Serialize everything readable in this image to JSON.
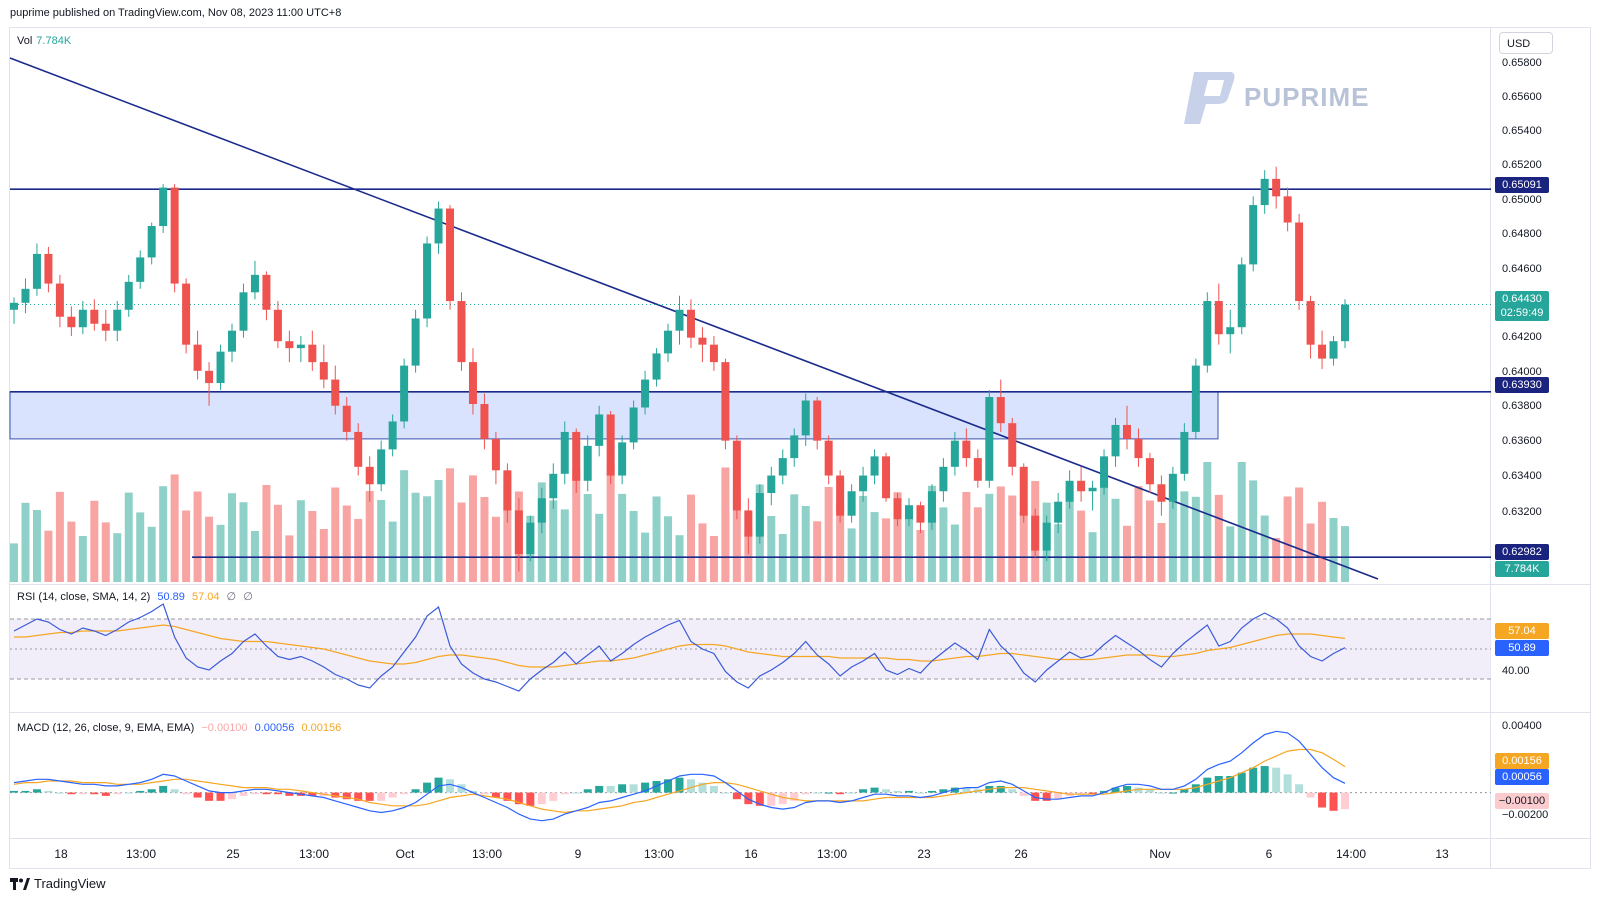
{
  "header": {
    "published": "puprime published on TradingView.com, Nov 08, 2023 11:00 UTC+8"
  },
  "watermark": {
    "text": "PUPRIME"
  },
  "currency_button": "USD",
  "footer": {
    "brand": "TradingView"
  },
  "panes": {
    "volume": {
      "name": "Vol",
      "value": "7.784K"
    },
    "rsi": {
      "name": "RSI",
      "params": "(14, close, SMA, 14, 2)",
      "value": "50.89",
      "sma": "57.04",
      "extra1": "∅",
      "extra2": "∅"
    },
    "macd": {
      "name": "MACD",
      "params": "(12, 26, close, 9, EMA, EMA)",
      "hist": "−0.00100",
      "macd": "0.00056",
      "signal": "0.00156"
    }
  },
  "price_axis": {
    "ticks": [
      "0.65800",
      "0.65600",
      "0.65400",
      "0.65200",
      "0.65000",
      "0.64800",
      "0.64600",
      "0.64200",
      "0.64000",
      "0.63800",
      "0.63600",
      "0.63400",
      "0.63200"
    ],
    "tags": {
      "resistance": "0.65091",
      "last_price": "0.64430",
      "countdown": "02:59:49",
      "support": "0.63930",
      "lower_line": "0.62982",
      "volume": "7.784K"
    }
  },
  "rsi_axis": {
    "ticks": [
      "40.00"
    ],
    "tags": {
      "sma": "57.04",
      "rsi": "50.89"
    }
  },
  "macd_axis": {
    "ticks": [
      "0.00400",
      "−0.00200"
    ],
    "tags": {
      "signal": "0.00156",
      "macd": "0.00056",
      "hist": "−0.00100"
    }
  },
  "time_axis": [
    "18",
    "13:00",
    "25",
    "13:00",
    "Oct",
    "13:00",
    "9",
    "13:00",
    "16",
    "13:00",
    "23",
    "26",
    "Nov",
    "6",
    "14:00",
    "13"
  ],
  "colors": {
    "up": "#26a69a",
    "down": "#ef5350",
    "line": "#1a2b8c",
    "zone": "#cfdcfc",
    "rsi_line": "#3a5bd9",
    "rsi_sma": "#f5a623",
    "macd_line": "#2962ff",
    "signal": "#f5a623"
  },
  "chart_data": {
    "type": "candlestick",
    "symbol_currency": "USD",
    "ylim": [
      0.6284,
      0.659
    ],
    "candles_ohlc": [
      [
        0.644,
        0.6447,
        0.6432,
        0.6444
      ],
      [
        0.6444,
        0.6458,
        0.6438,
        0.6452
      ],
      [
        0.6452,
        0.6478,
        0.6448,
        0.6472
      ],
      [
        0.6472,
        0.6476,
        0.645,
        0.6455
      ],
      [
        0.6455,
        0.646,
        0.643,
        0.6436
      ],
      [
        0.6436,
        0.6442,
        0.6425,
        0.643
      ],
      [
        0.643,
        0.6445,
        0.6426,
        0.644
      ],
      [
        0.644,
        0.6446,
        0.6428,
        0.6432
      ],
      [
        0.6432,
        0.644,
        0.6422,
        0.6428
      ],
      [
        0.6428,
        0.6445,
        0.6422,
        0.644
      ],
      [
        0.644,
        0.646,
        0.6436,
        0.6456
      ],
      [
        0.6456,
        0.6474,
        0.6452,
        0.647
      ],
      [
        0.647,
        0.649,
        0.6466,
        0.6488
      ],
      [
        0.6488,
        0.6512,
        0.6484,
        0.651
      ],
      [
        0.651,
        0.6512,
        0.645,
        0.6455
      ],
      [
        0.6455,
        0.6458,
        0.6415,
        0.642
      ],
      [
        0.642,
        0.6428,
        0.64,
        0.6405
      ],
      [
        0.6405,
        0.641,
        0.6385,
        0.6398
      ],
      [
        0.6398,
        0.642,
        0.6394,
        0.6416
      ],
      [
        0.6416,
        0.6432,
        0.641,
        0.6428
      ],
      [
        0.6428,
        0.6455,
        0.6424,
        0.645
      ],
      [
        0.645,
        0.6468,
        0.6446,
        0.646
      ],
      [
        0.646,
        0.6462,
        0.6434,
        0.644
      ],
      [
        0.644,
        0.6445,
        0.6418,
        0.6422
      ],
      [
        0.6422,
        0.6428,
        0.641,
        0.6418
      ],
      [
        0.6418,
        0.6425,
        0.641,
        0.642
      ],
      [
        0.642,
        0.6428,
        0.6405,
        0.641
      ],
      [
        0.641,
        0.642,
        0.6395,
        0.64
      ],
      [
        0.64,
        0.6408,
        0.638,
        0.6385
      ],
      [
        0.6385,
        0.639,
        0.6365,
        0.637
      ],
      [
        0.637,
        0.6375,
        0.6345,
        0.635
      ],
      [
        0.635,
        0.6356,
        0.633,
        0.634
      ],
      [
        0.634,
        0.6365,
        0.6336,
        0.636
      ],
      [
        0.636,
        0.638,
        0.6356,
        0.6376
      ],
      [
        0.6376,
        0.6412,
        0.6372,
        0.6408
      ],
      [
        0.6408,
        0.644,
        0.6404,
        0.6435
      ],
      [
        0.6435,
        0.6482,
        0.643,
        0.6478
      ],
      [
        0.6478,
        0.6502,
        0.6472,
        0.6498
      ],
      [
        0.6498,
        0.65,
        0.644,
        0.6445
      ],
      [
        0.6445,
        0.645,
        0.6405,
        0.641
      ],
      [
        0.641,
        0.6418,
        0.638,
        0.6386
      ],
      [
        0.6386,
        0.6392,
        0.636,
        0.6366
      ],
      [
        0.6366,
        0.637,
        0.634,
        0.6348
      ],
      [
        0.6348,
        0.6352,
        0.6318,
        0.6325
      ],
      [
        0.6325,
        0.6332,
        0.629,
        0.63
      ],
      [
        0.63,
        0.6322,
        0.6296,
        0.6318
      ],
      [
        0.6318,
        0.6338,
        0.6312,
        0.6332
      ],
      [
        0.6332,
        0.6352,
        0.6326,
        0.6346
      ],
      [
        0.6346,
        0.6376,
        0.634,
        0.637
      ],
      [
        0.637,
        0.6372,
        0.6335,
        0.6342
      ],
      [
        0.6342,
        0.6368,
        0.6336,
        0.6362
      ],
      [
        0.6362,
        0.6385,
        0.6356,
        0.638
      ],
      [
        0.638,
        0.6382,
        0.634,
        0.6345
      ],
      [
        0.6345,
        0.6368,
        0.634,
        0.6364
      ],
      [
        0.6364,
        0.6388,
        0.636,
        0.6384
      ],
      [
        0.6384,
        0.6405,
        0.638,
        0.64
      ],
      [
        0.64,
        0.6418,
        0.6396,
        0.6415
      ],
      [
        0.6415,
        0.6432,
        0.641,
        0.6428
      ],
      [
        0.6428,
        0.6448,
        0.642,
        0.644
      ],
      [
        0.644,
        0.6446,
        0.6418,
        0.6424
      ],
      [
        0.6424,
        0.643,
        0.641,
        0.642
      ],
      [
        0.642,
        0.6425,
        0.6405,
        0.641
      ],
      [
        0.641,
        0.6412,
        0.636,
        0.6365
      ],
      [
        0.6365,
        0.6368,
        0.632,
        0.6325
      ],
      [
        0.6325,
        0.6332,
        0.63,
        0.631
      ],
      [
        0.631,
        0.634,
        0.6306,
        0.6335
      ],
      [
        0.6335,
        0.635,
        0.6328,
        0.6345
      ],
      [
        0.6345,
        0.636,
        0.634,
        0.6355
      ],
      [
        0.6355,
        0.6372,
        0.635,
        0.6368
      ],
      [
        0.6368,
        0.6392,
        0.6362,
        0.6388
      ],
      [
        0.6388,
        0.639,
        0.636,
        0.6365
      ],
      [
        0.6365,
        0.6368,
        0.634,
        0.6345
      ],
      [
        0.6345,
        0.6348,
        0.6318,
        0.6322
      ],
      [
        0.6322,
        0.634,
        0.6318,
        0.6336
      ],
      [
        0.6336,
        0.635,
        0.633,
        0.6345
      ],
      [
        0.6345,
        0.636,
        0.634,
        0.6356
      ],
      [
        0.6356,
        0.6358,
        0.633,
        0.6332
      ],
      [
        0.6332,
        0.6335,
        0.6316,
        0.632
      ],
      [
        0.632,
        0.6332,
        0.6316,
        0.6328
      ],
      [
        0.6328,
        0.633,
        0.6312,
        0.6318
      ],
      [
        0.6318,
        0.634,
        0.6314,
        0.6336
      ],
      [
        0.6336,
        0.6355,
        0.633,
        0.635
      ],
      [
        0.635,
        0.637,
        0.6345,
        0.6365
      ],
      [
        0.6365,
        0.6372,
        0.635,
        0.6355
      ],
      [
        0.6355,
        0.636,
        0.6338,
        0.6342
      ],
      [
        0.6342,
        0.6394,
        0.6338,
        0.639
      ],
      [
        0.639,
        0.64,
        0.637,
        0.6375
      ],
      [
        0.6375,
        0.6378,
        0.6345,
        0.635
      ],
      [
        0.635,
        0.6352,
        0.6318,
        0.6322
      ],
      [
        0.6322,
        0.6326,
        0.6298,
        0.6302
      ],
      [
        0.6302,
        0.6322,
        0.6296,
        0.6318
      ],
      [
        0.6318,
        0.6335,
        0.6312,
        0.633
      ],
      [
        0.633,
        0.6348,
        0.6326,
        0.6342
      ],
      [
        0.6342,
        0.635,
        0.633,
        0.6336
      ],
      [
        0.6336,
        0.6342,
        0.6325,
        0.6338
      ],
      [
        0.6338,
        0.636,
        0.6334,
        0.6356
      ],
      [
        0.6356,
        0.6378,
        0.635,
        0.6374
      ],
      [
        0.6374,
        0.6385,
        0.636,
        0.6366
      ],
      [
        0.6366,
        0.6372,
        0.635,
        0.6355
      ],
      [
        0.6355,
        0.6358,
        0.6335,
        0.634
      ],
      [
        0.634,
        0.6345,
        0.6322,
        0.633
      ],
      [
        0.633,
        0.635,
        0.6326,
        0.6346
      ],
      [
        0.6346,
        0.6375,
        0.6342,
        0.637
      ],
      [
        0.637,
        0.6412,
        0.6366,
        0.6408
      ],
      [
        0.6408,
        0.645,
        0.6404,
        0.6445
      ],
      [
        0.6445,
        0.6455,
        0.642,
        0.6426
      ],
      [
        0.6426,
        0.644,
        0.6415,
        0.643
      ],
      [
        0.643,
        0.647,
        0.6426,
        0.6466
      ],
      [
        0.6466,
        0.6505,
        0.6462,
        0.65
      ],
      [
        0.65,
        0.652,
        0.6495,
        0.6515
      ],
      [
        0.6515,
        0.6522,
        0.6498,
        0.6505
      ],
      [
        0.6505,
        0.651,
        0.6485,
        0.649
      ],
      [
        0.649,
        0.6495,
        0.644,
        0.6445
      ],
      [
        0.6445,
        0.6448,
        0.6412,
        0.642
      ],
      [
        0.642,
        0.6428,
        0.6406,
        0.6412
      ],
      [
        0.6412,
        0.6425,
        0.6408,
        0.6422
      ],
      [
        0.6422,
        0.6446,
        0.6418,
        0.6443
      ]
    ],
    "horizontal_levels": [
      0.65091,
      0.6393,
      0.62982
    ],
    "zone": [
      0.6366,
      0.6393
    ],
    "last_price": 0.6443,
    "rsi": {
      "ylim": [
        20,
        80
      ],
      "bands": [
        30,
        70
      ],
      "mid": 50,
      "values": [
        62,
        66,
        70,
        68,
        63,
        60,
        64,
        62,
        59,
        63,
        68,
        71,
        75,
        80,
        58,
        44,
        38,
        36,
        42,
        47,
        55,
        60,
        52,
        45,
        43,
        45,
        42,
        38,
        33,
        30,
        26,
        24,
        32,
        38,
        48,
        58,
        72,
        78,
        52,
        40,
        34,
        30,
        28,
        25,
        22,
        30,
        36,
        41,
        48,
        40,
        46,
        52,
        42,
        47,
        53,
        58,
        62,
        66,
        69,
        55,
        50,
        47,
        35,
        28,
        24,
        32,
        36,
        41,
        47,
        55,
        46,
        40,
        32,
        38,
        42,
        47,
        36,
        33,
        37,
        34,
        42,
        48,
        54,
        49,
        43,
        63,
        52,
        45,
        34,
        28,
        36,
        42,
        48,
        44,
        46,
        53,
        59,
        54,
        49,
        43,
        38,
        47,
        54,
        60,
        66,
        52,
        55,
        64,
        70,
        74,
        70,
        64,
        52,
        45,
        42,
        47,
        50.89
      ],
      "sma": [
        58,
        58,
        59,
        60,
        61,
        61,
        62,
        62,
        62,
        62,
        63,
        64,
        65,
        66,
        65,
        63,
        61,
        59,
        57,
        56,
        55,
        55,
        55,
        54,
        53,
        52,
        51,
        50,
        48,
        46,
        44,
        42,
        41,
        40,
        40,
        41,
        43,
        45,
        46,
        46,
        45,
        44,
        43,
        41,
        39,
        38,
        38,
        38,
        39,
        40,
        41,
        42,
        42,
        43,
        44,
        46,
        48,
        50,
        52,
        53,
        53,
        53,
        52,
        50,
        48,
        47,
        46,
        45,
        45,
        45,
        45,
        45,
        44,
        44,
        44,
        44,
        44,
        43,
        43,
        42,
        42,
        43,
        44,
        45,
        45,
        46,
        47,
        47,
        46,
        45,
        44,
        43,
        43,
        43,
        43,
        44,
        45,
        46,
        46,
        46,
        45,
        45,
        46,
        47,
        49,
        50,
        51,
        53,
        55,
        57,
        59,
        60,
        60,
        60,
        59,
        58,
        57.04
      ]
    },
    "macd": {
      "ylim": [
        -0.0025,
        0.0045
      ],
      "macd": [
        0.0006,
        0.0007,
        0.0008,
        0.0008,
        0.0007,
        0.0006,
        0.0005,
        0.0005,
        0.0004,
        0.0004,
        0.0005,
        0.0006,
        0.0008,
        0.0011,
        0.001,
        0.0007,
        0.0004,
        0.0001,
        0.0,
        0.0,
        0.0001,
        0.0002,
        0.0002,
        0.0001,
        0.0,
        -0.0001,
        -0.0002,
        -0.0003,
        -0.0005,
        -0.0007,
        -0.0009,
        -0.0011,
        -0.0012,
        -0.0011,
        -0.0009,
        -0.0006,
        -0.0001,
        0.0004,
        0.0005,
        0.0003,
        0.0,
        -0.0003,
        -0.0006,
        -0.0009,
        -0.0013,
        -0.0016,
        -0.0017,
        -0.0016,
        -0.0013,
        -0.0011,
        -0.0009,
        -0.0006,
        -0.0005,
        -0.0003,
        -0.0001,
        0.0001,
        0.0004,
        0.0007,
        0.001,
        0.0011,
        0.0011,
        0.001,
        0.0006,
        0.0001,
        -0.0004,
        -0.0007,
        -0.0009,
        -0.001,
        -0.0009,
        -0.0006,
        -0.0005,
        -0.0005,
        -0.0006,
        -0.0005,
        -0.0003,
        -0.0001,
        -0.0001,
        -0.0002,
        -0.0002,
        -0.0003,
        -0.0002,
        0.0,
        0.0002,
        0.0003,
        0.0003,
        0.0006,
        0.0007,
        0.0005,
        0.0001,
        -0.0003,
        -0.0004,
        -0.0004,
        -0.0003,
        -0.0002,
        -0.0002,
        0.0,
        0.0003,
        0.0005,
        0.0005,
        0.0004,
        0.0002,
        0.0002,
        0.0004,
        0.0008,
        0.0014,
        0.0017,
        0.0019,
        0.0024,
        0.003,
        0.0035,
        0.0037,
        0.0036,
        0.0031,
        0.0023,
        0.0015,
        0.0009,
        0.00056
      ],
      "signal": [
        0.0005,
        0.0006,
        0.0006,
        0.0007,
        0.0007,
        0.0007,
        0.0006,
        0.0006,
        0.0006,
        0.0005,
        0.0005,
        0.0005,
        0.0006,
        0.0007,
        0.0008,
        0.0008,
        0.0007,
        0.0006,
        0.0005,
        0.0004,
        0.0003,
        0.0003,
        0.0003,
        0.0002,
        0.0002,
        0.0001,
        0.0,
        -0.0001,
        -0.0002,
        -0.0003,
        -0.0004,
        -0.0006,
        -0.0007,
        -0.0008,
        -0.0008,
        -0.0008,
        -0.0007,
        -0.0005,
        -0.0003,
        -0.0002,
        -0.0001,
        -0.0002,
        -0.0003,
        -0.0004,
        -0.0006,
        -0.0008,
        -0.001,
        -0.0011,
        -0.0012,
        -0.0011,
        -0.0011,
        -0.001,
        -0.0009,
        -0.0008,
        -0.0006,
        -0.0005,
        -0.0003,
        -0.0001,
        0.0001,
        0.0003,
        0.0005,
        0.0006,
        0.0006,
        0.0005,
        0.0003,
        0.0001,
        -0.0001,
        -0.0003,
        -0.0004,
        -0.0005,
        -0.0005,
        -0.0005,
        -0.0005,
        -0.0005,
        -0.0005,
        -0.0004,
        -0.0003,
        -0.0003,
        -0.0003,
        -0.0003,
        -0.0003,
        -0.0002,
        -0.0001,
        0.0,
        0.0001,
        0.0002,
        0.0003,
        0.0003,
        0.0003,
        0.0002,
        0.0001,
        0.0,
        -0.0001,
        -0.0001,
        -0.0001,
        -0.0001,
        0.0,
        0.0001,
        0.0002,
        0.0002,
        0.0002,
        0.0002,
        0.0002,
        0.0003,
        0.0005,
        0.0007,
        0.0009,
        0.0012,
        0.0015,
        0.0019,
        0.0022,
        0.0025,
        0.0026,
        0.0026,
        0.0024,
        0.002,
        0.00156
      ]
    }
  }
}
